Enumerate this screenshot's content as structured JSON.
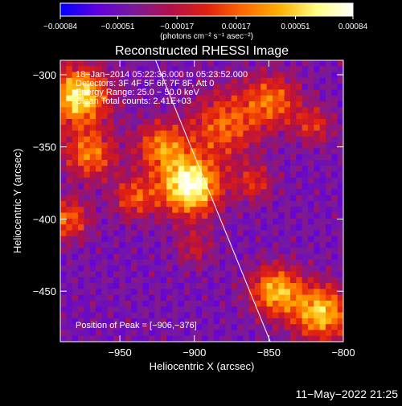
{
  "chart_data": {
    "type": "heatmap",
    "title": "Reconstructed RHESSI Image",
    "xlabel": "Heliocentric X (arcsec)",
    "ylabel": "Heliocentric Y (arcsec)",
    "xlim": [
      -990,
      -800
    ],
    "ylim": [
      -485,
      -290
    ],
    "xticks": [
      -950,
      -900,
      -850,
      -800
    ],
    "xtick_labels": [
      "−950",
      "−900",
      "−850",
      "−800"
    ],
    "yticks": [
      -300,
      -350,
      -400,
      -450
    ],
    "ytick_labels": [
      "−300",
      "−350",
      "−400",
      "−450"
    ],
    "colorbar": {
      "range": [
        -0.00084,
        0.00084
      ],
      "ticks": [
        -0.00084,
        -0.00051,
        -0.00017,
        0.00017,
        0.00051,
        0.00084
      ],
      "tick_labels": [
        "−0.00084",
        "−0.00051",
        "−0.00017",
        "0.00017",
        "0.00051",
        "0.00084"
      ],
      "unit_label": "(photons cm⁻² s⁻¹ asec⁻²)",
      "colormap": [
        "#0000ff",
        "#6000e0",
        "#7a1a9a",
        "#b0104a",
        "#e02010",
        "#ff6a00",
        "#ffb000",
        "#ffff80",
        "#ffffff"
      ]
    },
    "annotations": [
      "18−Jan−2014 05:22:36.000 to 05:23:52.000",
      "Detectors: 3F 4F 5F 6F 7F 8F, Att 0",
      "Energy Range: 25.0 − 50.0 keV",
      "Clean    Total counts: 2.41E+03"
    ],
    "peak": {
      "x": -906,
      "y": -376,
      "label": "Position of Peak = [−906,−376]"
    },
    "limb_line": {
      "from": [
        -926,
        -290
      ],
      "to": [
        -849,
        -485
      ]
    },
    "sources": [
      {
        "x": -903,
        "y": -377,
        "sigma": 14,
        "amp": 1.0
      },
      {
        "x": -922,
        "y": -350,
        "sigma": 12,
        "amp": 0.55
      },
      {
        "x": -978,
        "y": -315,
        "sigma": 14,
        "amp": 0.85
      },
      {
        "x": -970,
        "y": -355,
        "sigma": 12,
        "amp": 0.55
      },
      {
        "x": -940,
        "y": -385,
        "sigma": 10,
        "amp": 0.45
      },
      {
        "x": -985,
        "y": -400,
        "sigma": 10,
        "amp": 0.5
      },
      {
        "x": -880,
        "y": -335,
        "sigma": 16,
        "amp": 0.5
      },
      {
        "x": -848,
        "y": -318,
        "sigma": 13,
        "amp": 0.5
      },
      {
        "x": -860,
        "y": -375,
        "sigma": 9,
        "amp": 0.35
      },
      {
        "x": -845,
        "y": -450,
        "sigma": 12,
        "amp": 0.7
      },
      {
        "x": -815,
        "y": -465,
        "sigma": 13,
        "amp": 0.75
      },
      {
        "x": -820,
        "y": -335,
        "sigma": 9,
        "amp": 0.35
      },
      {
        "x": -900,
        "y": -420,
        "sigma": 9,
        "amp": 0.25
      }
    ]
  },
  "footer": {
    "date_stamp": "11−May−2022 21:25"
  }
}
